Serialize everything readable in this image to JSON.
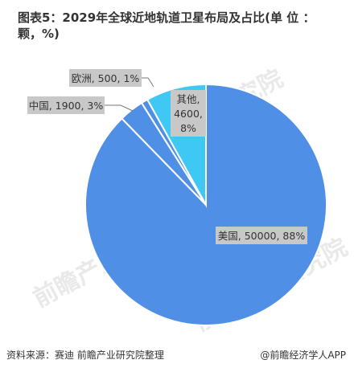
{
  "title": {
    "line1": "图表5：2029年全球近地轨道卫星布局及占比(单 位 ：",
    "line2": "颗，%)"
  },
  "chart_data": {
    "type": "pie",
    "slices": [
      {
        "name": "美国",
        "value": 50000,
        "percent": 88,
        "label": "美国, 50000, 88%",
        "color": "#4f8fe6"
      },
      {
        "name": "中国",
        "value": 1900,
        "percent": 3,
        "label": "中国, 1900, 3%",
        "color": "#4f8fe6"
      },
      {
        "name": "欧洲",
        "value": 500,
        "percent": 1,
        "label": "欧洲, 500, 1%",
        "color": "#4f8fe6"
      },
      {
        "name": "其他",
        "value": 4600,
        "percent": 8,
        "label_lines": [
          "其他,",
          "4600,",
          "8%"
        ],
        "color": "#3fc8f4"
      }
    ]
  },
  "footer": {
    "source": "资料来源：赛迪 前瞻产业研究院整理",
    "brand": "@前瞻经济学人APP"
  },
  "watermark": "前瞻产业研究院",
  "colors": {
    "main": "#4f8fe6",
    "other": "#3fc8f4",
    "label_bg": "#c8c8c8"
  }
}
